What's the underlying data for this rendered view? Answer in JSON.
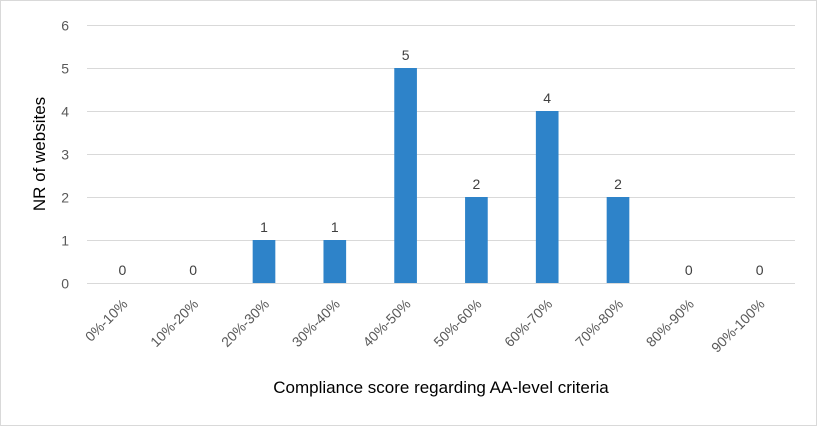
{
  "chart_data": {
    "type": "bar",
    "title": "",
    "xlabel": "Compliance score regarding AA-level criteria",
    "ylabel": "NR of websites",
    "categories": [
      "0%-10%",
      "10%-20%",
      "20%-30%",
      "30%-40%",
      "40%-50%",
      "50%-60%",
      "60%-70%",
      "70%-80%",
      "80%-90%",
      "90%-100%"
    ],
    "values": [
      0,
      0,
      1,
      1,
      5,
      2,
      4,
      2,
      0,
      0
    ],
    "ylim": [
      0,
      6
    ],
    "yticks": [
      0,
      1,
      2,
      3,
      4,
      5,
      6
    ],
    "grid": true,
    "legend": "none",
    "bar_color": "#2e83c9",
    "grid_color": "#d9d9d9"
  }
}
